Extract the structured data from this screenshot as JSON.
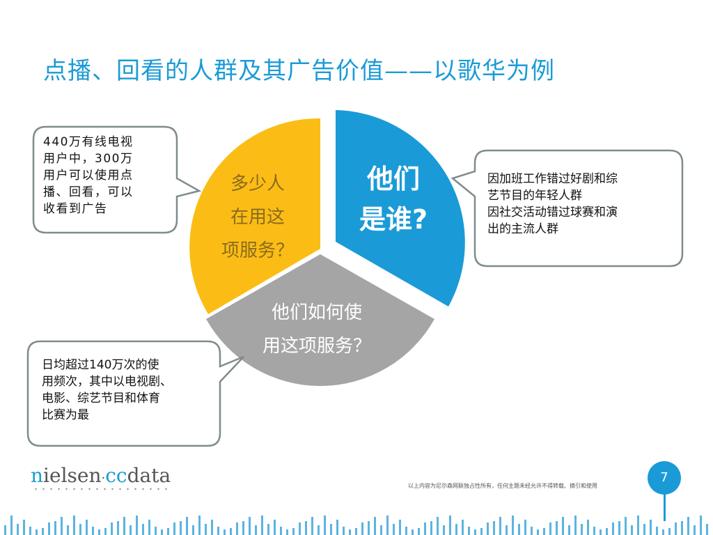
{
  "title": "点播、回看的人群及其广告价值——以歌华为例",
  "pie": {
    "segments": [
      {
        "lines": [
          "多少人",
          "在用这",
          "项服务？"
        ],
        "color": "#fbbd15"
      },
      {
        "lines": [
          "他们",
          "是谁?"
        ],
        "color": "#1a9bd7"
      },
      {
        "lines": [
          "他们如何使",
          "用这项服务？"
        ],
        "color": "#a5a5a5"
      }
    ]
  },
  "callouts": {
    "top_left": [
      "440万有线电视",
      "用户中，300万",
      "用户可以使用点",
      "播、回看，可以",
      "收看到广告"
    ],
    "right": [
      "因加班工作错过好剧和综",
      "艺节目的年轻人群",
      "因社交活动错过球赛和演",
      "出的主流人群"
    ],
    "bottom_left": [
      "日均超过140万次的使",
      "用频次，其中以电视剧、",
      "电影、综艺节目和体育",
      "比赛为最"
    ]
  },
  "logo": {
    "part1": "n",
    "part2": "ielsen",
    "sep": "·",
    "part3": "cc",
    "part4": "data"
  },
  "footnote": "以上内容为尼尔森网联独占性所有，任何主题未经允许不得转载、摘引和使用",
  "page_number": "7",
  "accent_color": "#1a9bd7"
}
